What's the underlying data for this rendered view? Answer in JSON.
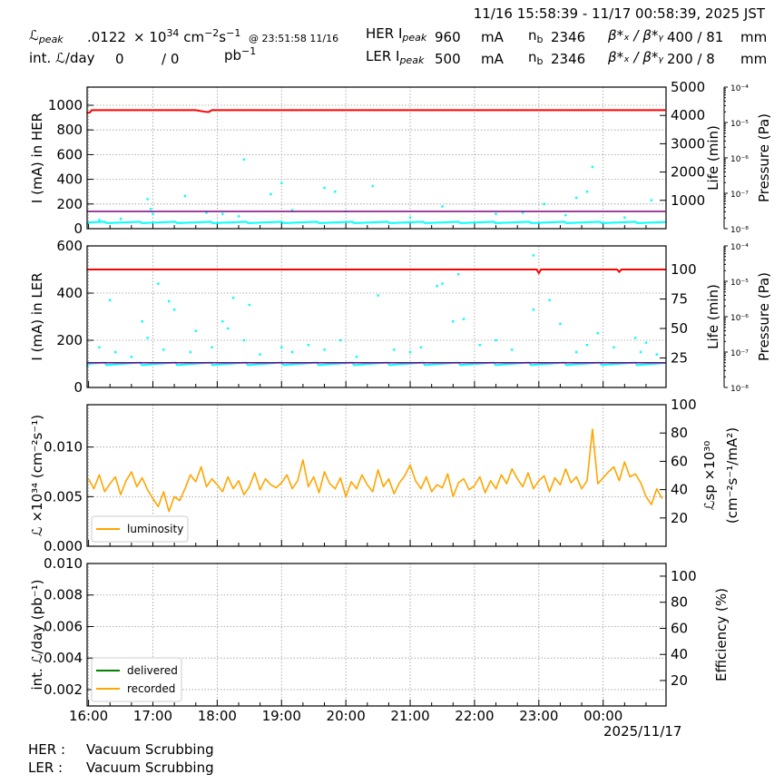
{
  "header": {
    "time_range": "11/16 15:58:39 - 11/17 00:58:39, 2025 JST",
    "lpeak_label": "ℒ",
    "lpeak_sub": "peak",
    "lpeak_value": ".0122",
    "lpeak_unit_x": "× 10",
    "lpeak_unit_exp": "34",
    "lpeak_unit_cm": " cm",
    "lpeak_unit_cm_exp": "−2",
    "lpeak_unit_s": "s",
    "lpeak_unit_s_exp": "−1",
    "lpeak_at": "@ 23:51:58 11/16",
    "intl_label": "int. ℒ/day",
    "intl_delivered": "0",
    "intl_recorded": "/ 0",
    "intl_unit": "pb",
    "intl_unit_exp": "−1",
    "her": {
      "label": "HER I",
      "sub": "peak",
      "current": "960",
      "unit": "mA",
      "nb_label": "n",
      "nb_sub": "b",
      "nb": "2346",
      "beta_label": "β*ₓ / β*ᵧ",
      "beta": "400  / 81",
      "beta_unit": "mm"
    },
    "ler": {
      "label": "LER I",
      "sub": "peak",
      "current": "500",
      "unit": "mA",
      "nb_label": "n",
      "nb_sub": "b",
      "nb": "2346",
      "beta_label": "β*ₓ / β*ᵧ",
      "beta": "200  / 8",
      "beta_unit": "mm"
    }
  },
  "footer": {
    "her_label": "HER :",
    "her_status": "Vacuum Scrubbing",
    "ler_label": "LER :",
    "ler_status": "Vacuum Scrubbing",
    "date": "2025/11/17"
  },
  "colors": {
    "her_current": "#ff0000",
    "life": "#800080",
    "pressure": "#00ffff",
    "luminosity": "#ffa500",
    "delivered": "#008000",
    "recorded": "#ffa500"
  },
  "chart_data": [
    {
      "type": "line",
      "ylabel": "I (mA) in HER",
      "y2label": "Life (min)",
      "y3label": "Pressure (Pa)",
      "xlim": [
        "15:58:39",
        "00:58:39"
      ],
      "xticks": [
        "16:00",
        "17:00",
        "18:00",
        "19:00",
        "20:00",
        "21:00",
        "22:00",
        "23:00",
        "00:00"
      ],
      "ylim": [
        0,
        1147
      ],
      "yticks": [
        0,
        200,
        400,
        600,
        800,
        1000
      ],
      "y2lim": [
        0,
        5000
      ],
      "y2ticks": [
        1000,
        2000,
        3000,
        4000,
        5000
      ],
      "y3scale": "log",
      "y3ticks": [
        "10⁻⁸",
        "10⁻⁷",
        "10⁻⁶",
        "10⁻⁵",
        "10⁻⁴"
      ],
      "grid": true,
      "red_line": [
        [
          "15:59",
          940
        ],
        [
          "16:01",
          940
        ],
        [
          "16:03",
          960
        ],
        [
          "17:40",
          960
        ],
        [
          "17:48",
          948
        ],
        [
          "17:52",
          945
        ],
        [
          "17:55",
          960
        ],
        [
          "00:58",
          960
        ]
      ],
      "purple_line": [
        [
          "15:59",
          140
        ],
        [
          "00:58",
          140
        ]
      ],
      "cyan_baseline": 50,
      "cyan_points": [
        [
          "16:10",
          70
        ],
        [
          "16:30",
          80
        ],
        [
          "16:55",
          240
        ],
        [
          "16:58",
          160
        ],
        [
          "17:00",
          120
        ],
        [
          "17:30",
          265
        ],
        [
          "17:50",
          130
        ],
        [
          "18:05",
          120
        ],
        [
          "18:20",
          100
        ],
        [
          "18:25",
          560
        ],
        [
          "18:50",
          280
        ],
        [
          "19:00",
          370
        ],
        [
          "19:10",
          150
        ],
        [
          "19:40",
          330
        ],
        [
          "19:50",
          300
        ],
        [
          "20:00",
          140
        ],
        [
          "20:25",
          345
        ],
        [
          "21:00",
          90
        ],
        [
          "21:30",
          180
        ],
        [
          "22:20",
          120
        ],
        [
          "22:45",
          130
        ],
        [
          "23:05",
          200
        ],
        [
          "23:25",
          110
        ],
        [
          "23:35",
          250
        ],
        [
          "23:45",
          300
        ],
        [
          "23:50",
          500
        ],
        [
          "00:20",
          90
        ],
        [
          "00:45",
          230
        ]
      ]
    },
    {
      "type": "line",
      "ylabel": "I (mA) in LER",
      "y2label": "Life (min)",
      "y3label": "Pressure (Pa)",
      "ylim": [
        0,
        600
      ],
      "yticks": [
        0,
        200,
        400,
        600
      ],
      "y2lim": [
        0,
        120
      ],
      "y2ticks": [
        25,
        50,
        75,
        100
      ],
      "y3scale": "log",
      "y3ticks": [
        "10⁻⁸",
        "10⁻⁷",
        "10⁻⁶",
        "10⁻⁵",
        "10⁻⁴"
      ],
      "grid": true,
      "red_line": [
        [
          "15:59",
          500
        ],
        [
          "22:58",
          500
        ],
        [
          "23:00",
          485
        ],
        [
          "23:02",
          500
        ],
        [
          "00:13",
          500
        ],
        [
          "00:15",
          490
        ],
        [
          "00:17",
          500
        ],
        [
          "00:58",
          500
        ]
      ],
      "purple_line": [
        [
          "15:59",
          105
        ],
        [
          "00:58",
          105
        ]
      ],
      "cyan_baseline": 100,
      "cyan_points": [
        [
          "16:10",
          170
        ],
        [
          "16:20",
          370
        ],
        [
          "16:25",
          150
        ],
        [
          "16:40",
          130
        ],
        [
          "16:50",
          280
        ],
        [
          "16:55",
          210
        ],
        [
          "17:05",
          440
        ],
        [
          "17:10",
          160
        ],
        [
          "17:15",
          365
        ],
        [
          "17:20",
          330
        ],
        [
          "17:35",
          150
        ],
        [
          "17:40",
          240
        ],
        [
          "17:55",
          170
        ],
        [
          "18:05",
          280
        ],
        [
          "18:10",
          250
        ],
        [
          "18:15",
          380
        ],
        [
          "18:25",
          200
        ],
        [
          "18:30",
          350
        ],
        [
          "18:40",
          140
        ],
        [
          "19:00",
          170
        ],
        [
          "19:10",
          150
        ],
        [
          "19:25",
          180
        ],
        [
          "19:40",
          160
        ],
        [
          "19:55",
          200
        ],
        [
          "20:10",
          130
        ],
        [
          "20:30",
          390
        ],
        [
          "20:45",
          160
        ],
        [
          "21:00",
          150
        ],
        [
          "21:10",
          170
        ],
        [
          "21:25",
          430
        ],
        [
          "21:30",
          440
        ],
        [
          "21:40",
          280
        ],
        [
          "21:45",
          480
        ],
        [
          "21:50",
          290
        ],
        [
          "22:05",
          180
        ],
        [
          "22:20",
          200
        ],
        [
          "22:35",
          160
        ],
        [
          "22:55",
          560
        ],
        [
          "22:55",
          330
        ],
        [
          "23:10",
          370
        ],
        [
          "23:20",
          270
        ],
        [
          "23:35",
          150
        ],
        [
          "23:45",
          180
        ],
        [
          "23:55",
          230
        ],
        [
          "00:10",
          170
        ],
        [
          "00:30",
          210
        ],
        [
          "00:35",
          150
        ],
        [
          "00:40",
          190
        ],
        [
          "00:50",
          140
        ]
      ]
    },
    {
      "type": "line",
      "ylabel": "ℒ ×10³⁴ (cm⁻²s⁻¹)",
      "y2label": "ℒsp ×10³⁰",
      "y2label2": "(cm⁻²s⁻¹/mA²)",
      "ylim": [
        0,
        0.01427
      ],
      "yticks": [
        "0.000",
        "0.005",
        "0.010"
      ],
      "y2lim": [
        0,
        100
      ],
      "y2ticks": [
        20,
        40,
        60,
        80,
        100
      ],
      "grid": true,
      "legend": {
        "placement": "lower-left",
        "entries": [
          "luminosity"
        ]
      },
      "series": [
        {
          "name": "luminosity",
          "start": "16:00",
          "step_min": 5,
          "values": [
            0.0068,
            0.0058,
            0.0072,
            0.0055,
            0.0063,
            0.007,
            0.0052,
            0.0066,
            0.0075,
            0.006,
            0.0069,
            0.0057,
            0.0048,
            0.004,
            0.0055,
            0.0035,
            0.005,
            0.0046,
            0.0058,
            0.0072,
            0.0065,
            0.008,
            0.006,
            0.0068,
            0.0062,
            0.0055,
            0.007,
            0.0058,
            0.0066,
            0.0052,
            0.006,
            0.0074,
            0.0057,
            0.0068,
            0.0062,
            0.0059,
            0.0064,
            0.0072,
            0.0058,
            0.0066,
            0.0087,
            0.006,
            0.007,
            0.0054,
            0.0075,
            0.0063,
            0.0058,
            0.0069,
            0.005,
            0.0065,
            0.0058,
            0.0072,
            0.0062,
            0.0055,
            0.0077,
            0.006,
            0.0068,
            0.0053,
            0.0064,
            0.0071,
            0.0082,
            0.0066,
            0.0058,
            0.007,
            0.0055,
            0.0062,
            0.0059,
            0.0073,
            0.005,
            0.0064,
            0.0068,
            0.0057,
            0.0061,
            0.007,
            0.0054,
            0.0066,
            0.0058,
            0.0072,
            0.0063,
            0.0078,
            0.0068,
            0.006,
            0.0074,
            0.0058,
            0.0066,
            0.0071,
            0.0055,
            0.0069,
            0.0062,
            0.0078,
            0.0064,
            0.007,
            0.0058,
            0.0066,
            0.0118,
            0.0063,
            0.0069,
            0.0075,
            0.008,
            0.0066,
            0.0085,
            0.007,
            0.0073,
            0.0064,
            0.005,
            0.0042,
            0.0058,
            0.0048
          ]
        }
      ]
    },
    {
      "type": "line",
      "ylabel": "int. ℒ/day (pb⁻¹)",
      "y2label": "Efficiency (%)",
      "ylim": [
        0.00096,
        0.01
      ],
      "yticks": [
        "0.002",
        "0.004",
        "0.006",
        "0.008",
        "0.010"
      ],
      "y2lim": [
        0.5,
        109.7
      ],
      "y2ticks": [
        20,
        40,
        60,
        80,
        100
      ],
      "grid": true,
      "legend": {
        "placement": "lower-left",
        "entries": [
          "delivered",
          "recorded"
        ]
      },
      "series": [
        {
          "name": "delivered",
          "values": []
        },
        {
          "name": "recorded",
          "values": []
        }
      ]
    }
  ]
}
